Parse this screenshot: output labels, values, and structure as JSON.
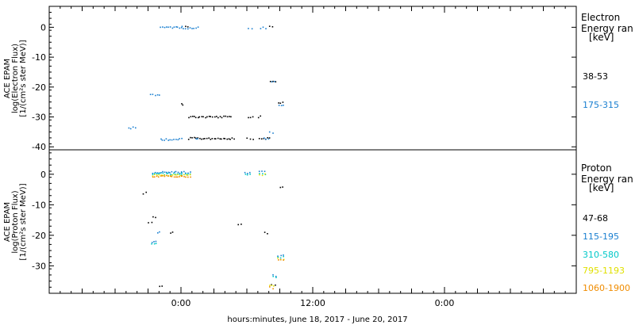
{
  "x_label": "hours:minutes, June 18, 2017 - June 20, 2017",
  "x_ticks": [
    "0:00",
    "12:00",
    "0:00"
  ],
  "chart_data": [
    {
      "type": "scatter",
      "panel": "electron",
      "ylabel": [
        "ACE EPAM",
        "log(Electron Flux)",
        "[1/(cm²s ster MeV)]"
      ],
      "ylim": [
        -41,
        7
      ],
      "yticks": [
        0,
        -10,
        -20,
        -30,
        -40
      ],
      "legend_title": [
        "Electron",
        "Energy ran",
        "[keV]"
      ],
      "legend_placement": "right",
      "series": [
        {
          "name": "38-53",
          "color": "#000000",
          "segments": [
            [
              0.0,
              0.1,
              -25.5
            ],
            [
              0.35,
              0.6,
              0.6
            ],
            [
              0.65,
              4.5,
              -29.8
            ],
            [
              0.65,
              4.8,
              -37.0
            ],
            [
              6.1,
              6.5,
              -29.8
            ],
            [
              6.0,
              6.5,
              -37.0
            ],
            [
              7.0,
              7.2,
              -29.8
            ],
            [
              7.1,
              8.0,
              -37.0
            ],
            [
              8.0,
              8.3,
              0.5
            ],
            [
              8.1,
              8.6,
              -18.0
            ],
            [
              8.8,
              9.2,
              -25.0
            ]
          ]
        },
        {
          "name": "175-315",
          "color": "#1a7fd0",
          "segments": [
            [
              -4.8,
              -4.2,
              -33.5
            ],
            [
              -2.8,
              -2.0,
              -22.5
            ],
            [
              -1.9,
              0.0,
              -37.3
            ],
            [
              -1.9,
              0.0,
              0.2
            ],
            [
              0.0,
              1.5,
              0.0
            ],
            [
              1.3,
              1.5,
              -37.0
            ],
            [
              6.1,
              6.4,
              0.0
            ],
            [
              7.2,
              7.7,
              0.0
            ],
            [
              7.5,
              7.9,
              -37.0
            ],
            [
              8.0,
              8.3,
              -35.0
            ],
            [
              8.2,
              8.5,
              -18.2
            ],
            [
              8.9,
              9.3,
              -26.0
            ]
          ]
        }
      ]
    },
    {
      "type": "scatter",
      "panel": "proton",
      "ylabel": [
        "ACE EPAM",
        "log(Proton Flux)",
        "[1/(cm²s ster MeV)]"
      ],
      "ylim": [
        -39,
        8
      ],
      "yticks": [
        0,
        -10,
        -20,
        -30
      ],
      "legend_title": [
        "Proton",
        "Energy ran",
        "[keV]"
      ],
      "legend_placement": "right",
      "series": [
        {
          "name": "47-68",
          "color": "#000000",
          "segments": [
            [
              -3.5,
              -3.2,
              -6.0
            ],
            [
              -3.0,
              -2.7,
              -15.5
            ],
            [
              -2.6,
              -2.4,
              -14.0
            ],
            [
              -1.0,
              -0.8,
              -19.0
            ],
            [
              -2.0,
              -1.8,
              -36.5
            ],
            [
              5.2,
              5.4,
              -16.0
            ],
            [
              7.6,
              7.8,
              -19.0
            ],
            [
              8.2,
              8.5,
              -36.0
            ],
            [
              9.0,
              9.2,
              -4.0
            ]
          ]
        },
        {
          "name": "115-195",
          "color": "#1a7fd0",
          "segments": [
            [
              -2.7,
              -2.3,
              -22.0
            ],
            [
              -2.2,
              -2.0,
              -19.0
            ],
            [
              -2.6,
              0.0,
              0.8
            ],
            [
              0.0,
              0.8,
              0.8
            ],
            [
              5.8,
              6.2,
              0.5
            ],
            [
              7.1,
              7.6,
              1.0
            ],
            [
              8.3,
              8.6,
              -33.0
            ],
            [
              8.8,
              9.3,
              -26.5
            ]
          ]
        },
        {
          "name": "310-580",
          "color": "#00c8c8",
          "segments": [
            [
              -2.7,
              -2.3,
              -22.5
            ],
            [
              -2.6,
              0.0,
              0.3
            ],
            [
              0.0,
              0.8,
              0.3
            ],
            [
              5.8,
              6.2,
              0.2
            ],
            [
              7.1,
              7.6,
              0.4
            ],
            [
              8.3,
              8.6,
              -33.5
            ],
            [
              8.8,
              9.3,
              -27.0
            ]
          ]
        },
        {
          "name": "795-1193",
          "color": "#e0e000",
          "segments": [
            [
              -2.6,
              0.0,
              -0.2
            ],
            [
              0.0,
              0.8,
              -0.2
            ],
            [
              7.1,
              7.6,
              0.0
            ],
            [
              8.0,
              8.4,
              -36.5
            ],
            [
              8.8,
              9.3,
              -27.5
            ]
          ]
        },
        {
          "name": "1060-1900",
          "color": "#f08c00",
          "segments": [
            [
              -2.6,
              0.0,
              -0.5
            ],
            [
              0.0,
              0.8,
              -0.5
            ],
            [
              8.0,
              8.3,
              -37.0
            ],
            [
              8.8,
              9.3,
              -28.0
            ]
          ]
        }
      ]
    }
  ]
}
